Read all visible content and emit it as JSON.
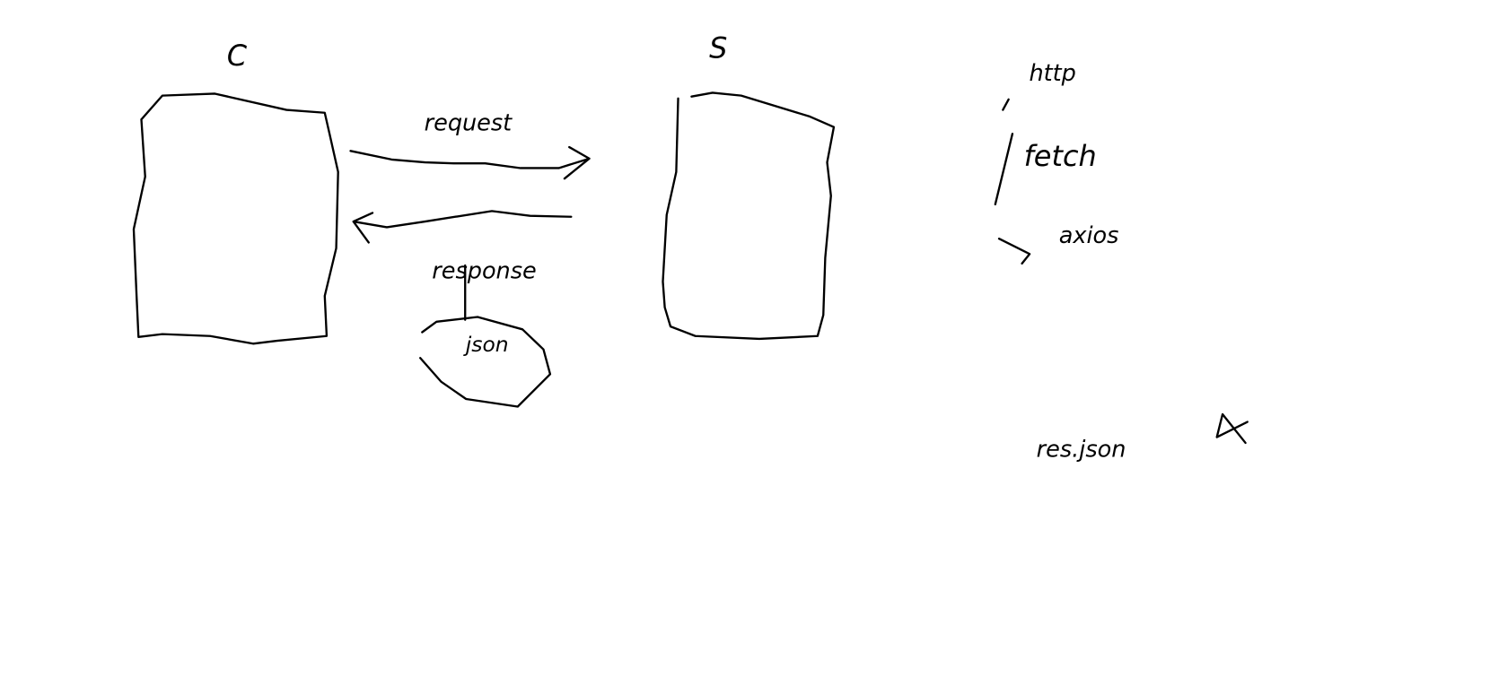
{
  "nodes": [
    {
      "label": "C"
    },
    {
      "label": "S"
    }
  ],
  "edges": [
    {
      "label": "request"
    },
    {
      "label": "response"
    }
  ],
  "note": "json",
  "side_notes": [
    "http",
    "fetch",
    "axios",
    "res.json"
  ]
}
